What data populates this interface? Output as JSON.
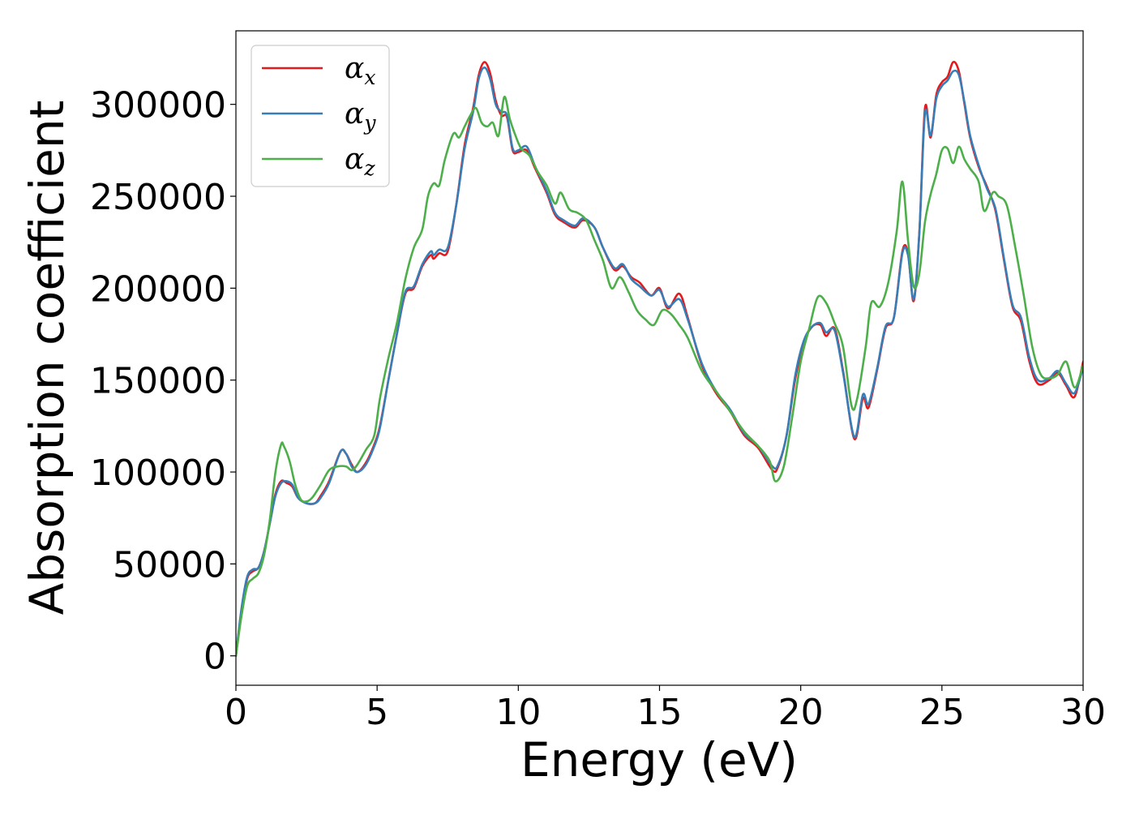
{
  "chart_data": {
    "type": "line",
    "xlabel": "Energy (eV)",
    "ylabel": "Absorption coefficient",
    "xlim": [
      0,
      30
    ],
    "ylim": [
      -16000,
      340000
    ],
    "xticks": [
      0,
      5,
      10,
      15,
      20,
      25,
      30
    ],
    "yticks": [
      0,
      50000,
      100000,
      150000,
      200000,
      250000,
      300000
    ],
    "xtick_labels": [
      "0",
      "5",
      "10",
      "15",
      "20",
      "25",
      "30"
    ],
    "ytick_labels": [
      "0",
      "50000",
      "100000",
      "150000",
      "200000",
      "250000",
      "300000"
    ],
    "grid": false,
    "legend_position": "top-left",
    "series": [
      {
        "name": "α_x",
        "legend_main": "α",
        "legend_sub": "x",
        "color": "#e41a1c",
        "x": [
          0,
          0.2,
          0.4,
          0.6,
          0.8,
          1.0,
          1.2,
          1.4,
          1.6,
          1.8,
          2.0,
          2.2,
          2.5,
          2.8,
          3.0,
          3.3,
          3.7,
          3.9,
          4.1,
          4.3,
          4.6,
          4.9,
          5.1,
          5.4,
          5.7,
          6.0,
          6.3,
          6.6,
          6.9,
          7.0,
          7.2,
          7.5,
          7.8,
          8.1,
          8.4,
          8.6,
          8.8,
          9.0,
          9.2,
          9.4,
          9.6,
          9.8,
          10.0,
          10.3,
          10.6,
          11.0,
          11.3,
          11.6,
          12.0,
          12.3,
          12.7,
          13.0,
          13.4,
          13.7,
          14.0,
          14.3,
          14.7,
          15.0,
          15.3,
          15.7,
          16.0,
          16.5,
          17.0,
          17.5,
          18.0,
          18.5,
          19.0,
          19.2,
          19.5,
          19.8,
          20.1,
          20.4,
          20.7,
          20.9,
          21.2,
          21.5,
          21.9,
          22.2,
          22.4,
          22.7,
          23.0,
          23.3,
          23.6,
          23.8,
          24.0,
          24.2,
          24.4,
          24.6,
          24.8,
          25.0,
          25.2,
          25.4,
          25.6,
          25.8,
          26.0,
          26.3,
          26.6,
          26.9,
          27.2,
          27.5,
          27.8,
          28.1,
          28.4,
          28.8,
          29.1,
          29.4,
          29.7,
          30.0
        ],
        "y": [
          0,
          25000,
          42000,
          46000,
          48000,
          57000,
          72000,
          88000,
          95000,
          94000,
          92000,
          86000,
          83000,
          83000,
          87000,
          95000,
          111000,
          110000,
          104000,
          100000,
          105000,
          115000,
          125000,
          150000,
          175000,
          197000,
          200000,
          212000,
          218000,
          216000,
          219000,
          220000,
          245000,
          278000,
          298000,
          316000,
          323000,
          317000,
          302000,
          294000,
          293000,
          275000,
          274000,
          275000,
          265000,
          252000,
          240000,
          236000,
          233000,
          237000,
          233000,
          222000,
          210000,
          212000,
          206000,
          203000,
          196000,
          200000,
          189000,
          197000,
          184000,
          158000,
          143000,
          133000,
          120000,
          113000,
          101000,
          103000,
          120000,
          150000,
          170000,
          179000,
          180000,
          174000,
          178000,
          155000,
          118000,
          140000,
          135000,
          155000,
          178000,
          184000,
          220000,
          219000,
          193000,
          230000,
          298000,
          282000,
          305000,
          312000,
          315000,
          323000,
          318000,
          300000,
          282000,
          266000,
          255000,
          242000,
          215000,
          190000,
          182000,
          160000,
          148000,
          150000,
          154000,
          147000,
          141000,
          160000
        ]
      },
      {
        "name": "α_y",
        "legend_main": "α",
        "legend_sub": "y",
        "color": "#377eb8",
        "x": [
          0,
          0.2,
          0.4,
          0.6,
          0.8,
          1.0,
          1.2,
          1.4,
          1.6,
          1.8,
          2.0,
          2.2,
          2.5,
          2.8,
          3.0,
          3.3,
          3.7,
          3.9,
          4.1,
          4.3,
          4.6,
          4.9,
          5.1,
          5.4,
          5.7,
          6.0,
          6.3,
          6.6,
          6.9,
          7.0,
          7.2,
          7.5,
          7.8,
          8.1,
          8.4,
          8.6,
          8.8,
          9.0,
          9.2,
          9.4,
          9.6,
          9.8,
          10.0,
          10.3,
          10.6,
          11.0,
          11.3,
          11.6,
          12.0,
          12.3,
          12.7,
          13.0,
          13.4,
          13.7,
          14.0,
          14.3,
          14.7,
          15.0,
          15.3,
          15.7,
          16.0,
          16.5,
          17.0,
          17.5,
          18.0,
          18.5,
          19.0,
          19.2,
          19.5,
          19.8,
          20.1,
          20.4,
          20.7,
          20.9,
          21.2,
          21.5,
          21.9,
          22.2,
          22.4,
          22.7,
          23.0,
          23.3,
          23.6,
          23.8,
          24.0,
          24.2,
          24.4,
          24.6,
          24.8,
          25.0,
          25.2,
          25.4,
          25.6,
          25.8,
          26.0,
          26.3,
          26.6,
          26.9,
          27.2,
          27.5,
          27.8,
          28.1,
          28.4,
          28.8,
          29.1,
          29.4,
          29.7,
          30.0
        ],
        "y": [
          0,
          26000,
          43000,
          47000,
          48000,
          57000,
          72000,
          87000,
          94000,
          95000,
          93000,
          86000,
          83000,
          83000,
          86000,
          94000,
          111000,
          110000,
          103000,
          100000,
          104000,
          114000,
          124000,
          150000,
          175000,
          198000,
          201000,
          213000,
          220000,
          218000,
          221000,
          222000,
          245000,
          276000,
          296000,
          314000,
          320000,
          314000,
          300000,
          296000,
          294000,
          276000,
          275000,
          277000,
          266000,
          253000,
          241000,
          237000,
          234000,
          238000,
          233000,
          222000,
          211000,
          213000,
          205000,
          201000,
          196000,
          199000,
          190000,
          194000,
          183000,
          159000,
          144000,
          134000,
          121000,
          114000,
          103000,
          104000,
          120000,
          152000,
          171000,
          179000,
          181000,
          176000,
          177000,
          154000,
          119000,
          142000,
          137000,
          156000,
          179000,
          184000,
          219000,
          218000,
          194000,
          230000,
          295000,
          283000,
          303000,
          310000,
          313000,
          318000,
          316000,
          301000,
          283000,
          267000,
          254000,
          243000,
          216000,
          191000,
          184000,
          162000,
          150000,
          151000,
          155000,
          148000,
          143000,
          157000
        ]
      },
      {
        "name": "α_z",
        "legend_main": "α",
        "legend_sub": "z",
        "color": "#4daf4a",
        "x": [
          0,
          0.2,
          0.4,
          0.6,
          0.8,
          1.0,
          1.2,
          1.4,
          1.6,
          1.7,
          1.9,
          2.1,
          2.3,
          2.5,
          2.7,
          3.0,
          3.3,
          3.6,
          3.9,
          4.1,
          4.3,
          4.6,
          4.9,
          5.1,
          5.4,
          5.7,
          6.0,
          6.3,
          6.6,
          6.8,
          7.0,
          7.2,
          7.4,
          7.7,
          7.9,
          8.1,
          8.3,
          8.5,
          8.7,
          8.9,
          9.1,
          9.3,
          9.5,
          9.7,
          9.9,
          10.1,
          10.4,
          10.7,
          11.0,
          11.3,
          11.5,
          11.8,
          12.1,
          12.4,
          12.7,
          13.0,
          13.3,
          13.6,
          13.9,
          14.2,
          14.5,
          14.8,
          15.1,
          15.4,
          15.7,
          16.0,
          16.5,
          17.0,
          17.5,
          18.0,
          18.5,
          18.9,
          19.1,
          19.4,
          19.7,
          20.0,
          20.3,
          20.6,
          20.9,
          21.2,
          21.5,
          21.8,
          22.0,
          22.3,
          22.5,
          22.8,
          23.1,
          23.4,
          23.6,
          23.8,
          24.0,
          24.2,
          24.4,
          24.6,
          24.8,
          25.0,
          25.2,
          25.4,
          25.6,
          25.8,
          26.0,
          26.3,
          26.5,
          26.8,
          27.0,
          27.3,
          27.6,
          27.9,
          28.2,
          28.5,
          28.8,
          29.1,
          29.4,
          29.7,
          30.0
        ],
        "y": [
          0,
          22000,
          38000,
          42000,
          45000,
          55000,
          74000,
          100000,
          115000,
          114000,
          106000,
          93000,
          85000,
          84000,
          86000,
          93000,
          101000,
          103000,
          103000,
          101000,
          104000,
          112000,
          120000,
          140000,
          162000,
          181000,
          205000,
          222000,
          232000,
          250000,
          257000,
          256000,
          270000,
          284000,
          282000,
          288000,
          294000,
          298000,
          290000,
          288000,
          290000,
          283000,
          304000,
          292000,
          283000,
          276000,
          272000,
          263000,
          256000,
          246000,
          252000,
          243000,
          241000,
          237000,
          226000,
          215000,
          200000,
          206000,
          198000,
          188000,
          183000,
          180000,
          188000,
          186000,
          180000,
          173000,
          155000,
          144000,
          133000,
          122000,
          114000,
          106000,
          95000,
          103000,
          130000,
          160000,
          178000,
          195000,
          192000,
          181000,
          168000,
          136000,
          140000,
          168000,
          192000,
          190000,
          203000,
          231000,
          258000,
          226000,
          201000,
          208000,
          236000,
          251000,
          262000,
          275000,
          276000,
          268000,
          277000,
          270000,
          265000,
          258000,
          242000,
          252000,
          250000,
          245000,
          222000,
          196000,
          168000,
          153000,
          151000,
          153000,
          160000,
          146000,
          158000
        ]
      }
    ]
  }
}
